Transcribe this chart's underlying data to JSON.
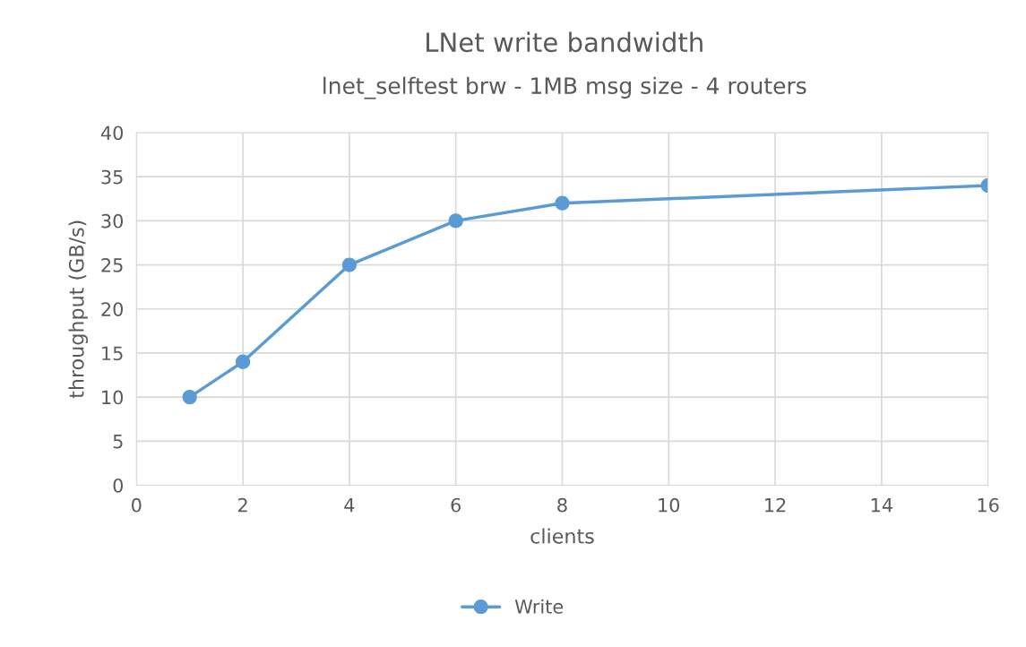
{
  "chart_data": {
    "type": "line",
    "title": "LNet write bandwidth",
    "subtitle": "lnet_selftest brw - 1MB msg size - 4 routers",
    "xlabel": "clients",
    "ylabel": "throughput (GB/s)",
    "x": [
      1,
      2,
      4,
      6,
      8,
      16
    ],
    "series": [
      {
        "name": "Write",
        "color": "#5b9bd5",
        "values": [
          10,
          14,
          25,
          30,
          32,
          34
        ]
      }
    ],
    "xlim": [
      0,
      16
    ],
    "xticks": [
      0,
      2,
      4,
      6,
      8,
      10,
      12,
      14,
      16
    ],
    "ylim": [
      0,
      40
    ],
    "yticks": [
      0,
      5,
      10,
      15,
      20,
      25,
      30,
      35,
      40
    ],
    "grid": true,
    "legend": "bottom",
    "marker": "circle",
    "line_style": "solid"
  }
}
